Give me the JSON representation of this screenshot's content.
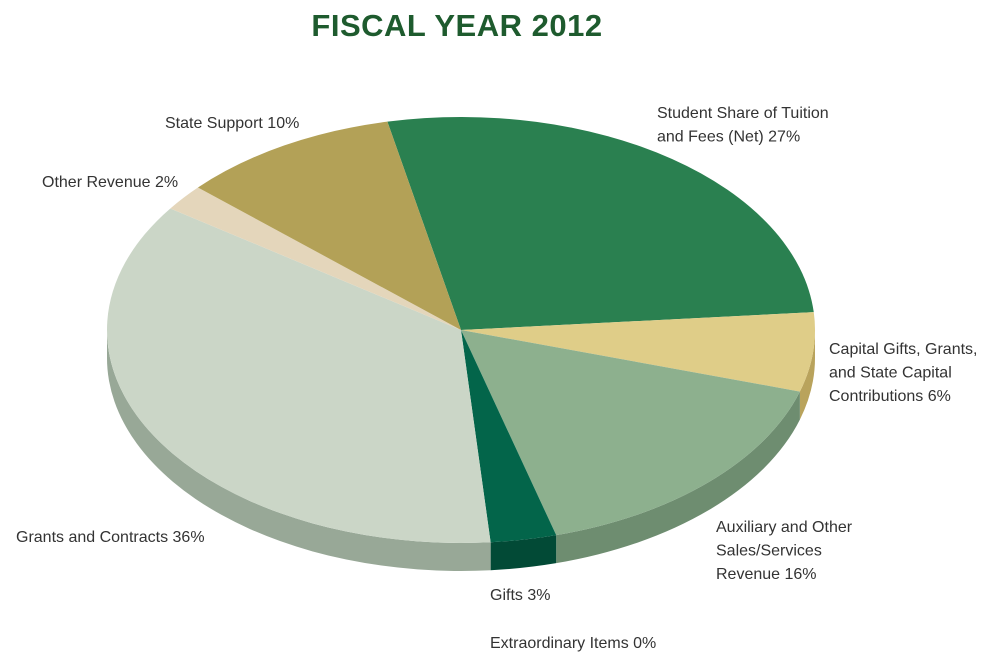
{
  "chart_data": {
    "type": "pie",
    "title": "FISCAL YEAR 2012",
    "style": "3d",
    "slices": [
      {
        "name": "Student Share of Tuition and Fees (Net)",
        "value": 27,
        "label_lines": [
          "Student Share of Tuition",
          "and Fees (Net) 27%"
        ],
        "color": "#2a8050",
        "side_color": "#1f5f3b"
      },
      {
        "name": "Capital Gifts, Grants, and State Capital Contributions",
        "value": 6,
        "label_lines": [
          "Capital Gifts, Grants,",
          "and State Capital",
          "Contributions 6%"
        ],
        "color": "#dfcd88",
        "side_color": "#b9a35c"
      },
      {
        "name": "Auxiliary and Other Sales/Services Revenue",
        "value": 16,
        "label_lines": [
          "Auxiliary and Other",
          "Sales/Services",
          "Revenue 16%"
        ],
        "color": "#8db08e",
        "side_color": "#6e8d70"
      },
      {
        "name": "Gifts",
        "value": 3,
        "label_lines": [
          "Gifts 3%"
        ],
        "color": "#03654a",
        "side_color": "#024a36"
      },
      {
        "name": "Extraordinary Items",
        "value": 0,
        "label_lines": [
          "Extraordinary Items 0%"
        ],
        "color": "#7a7a7a",
        "side_color": "#5a5a5a"
      },
      {
        "name": "Grants and Contracts",
        "value": 36,
        "label_lines": [
          "Grants and Contracts 36%"
        ],
        "color": "#cbd6c7",
        "side_color": "#98a897"
      },
      {
        "name": "Other Revenue",
        "value": 2,
        "label_lines": [
          "Other Revenue 2%"
        ],
        "color": "#e4d6bb",
        "side_color": "#b8a98c"
      },
      {
        "name": "State Support",
        "value": 10,
        "label_lines": [
          "State Support 10%"
        ],
        "color": "#b3a157",
        "side_color": "#8c7c3d"
      }
    ]
  }
}
